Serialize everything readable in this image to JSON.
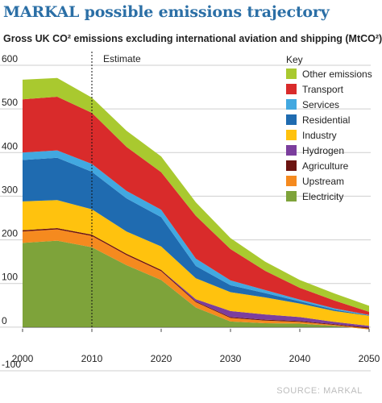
{
  "title": "MARKAL possible emissions trajectory",
  "subtitle": "Gross UK CO² emissions excluding international aviation and shipping (MtCO²)",
  "source": "SOURCE: MARKAL",
  "chart_data": {
    "type": "area",
    "stacked": true,
    "x": [
      2000,
      2005,
      2010,
      2015,
      2020,
      2025,
      2030,
      2035,
      2040,
      2045,
      2050
    ],
    "xticks": [
      2000,
      2010,
      2020,
      2030,
      2040,
      2050
    ],
    "yticks": [
      600,
      500,
      400,
      300,
      200,
      100,
      0,
      -100
    ],
    "xlim": [
      2000,
      2050
    ],
    "ylim": [
      -100,
      600
    ],
    "annotation": {
      "label": "Estimate",
      "x": 2010
    },
    "legend_title": "Key",
    "legend_position": "top-right",
    "series": [
      {
        "name": "Electricity",
        "color": "#7ea33a",
        "values": [
          193,
          198,
          183,
          142,
          108,
          45,
          13,
          9,
          8,
          3,
          -5
        ]
      },
      {
        "name": "Upstream",
        "color": "#f58a1f",
        "values": [
          26,
          26,
          26,
          23,
          20,
          12,
          8,
          6,
          4,
          2,
          2
        ]
      },
      {
        "name": "Agriculture",
        "color": "#6b1410",
        "values": [
          3,
          3,
          3,
          3,
          3,
          2,
          2,
          2,
          2,
          2,
          2
        ]
      },
      {
        "name": "Hydrogen",
        "color": "#7b3e9d",
        "values": [
          0,
          0,
          0,
          0,
          0,
          5,
          14,
          12,
          9,
          5,
          4
        ]
      },
      {
        "name": "Industry",
        "color": "#ffc20e",
        "values": [
          66,
          64,
          58,
          51,
          54,
          48,
          43,
          39,
          31,
          25,
          23
        ]
      },
      {
        "name": "Residential",
        "color": "#1f6bb0",
        "values": [
          95,
          97,
          86,
          76,
          67,
          28,
          16,
          10,
          5,
          3,
          1
        ]
      },
      {
        "name": "Services",
        "color": "#42a8e0",
        "values": [
          17,
          17,
          18,
          17,
          17,
          17,
          11,
          7,
          4,
          3,
          1
        ]
      },
      {
        "name": "Transport",
        "color": "#d92b2b",
        "values": [
          122,
          123,
          117,
          101,
          86,
          98,
          72,
          44,
          27,
          18,
          7
        ]
      },
      {
        "name": "Other emissions",
        "color": "#a9c92f",
        "values": [
          45,
          43,
          35,
          37,
          36,
          31,
          25,
          21,
          18,
          16,
          14
        ]
      }
    ]
  }
}
